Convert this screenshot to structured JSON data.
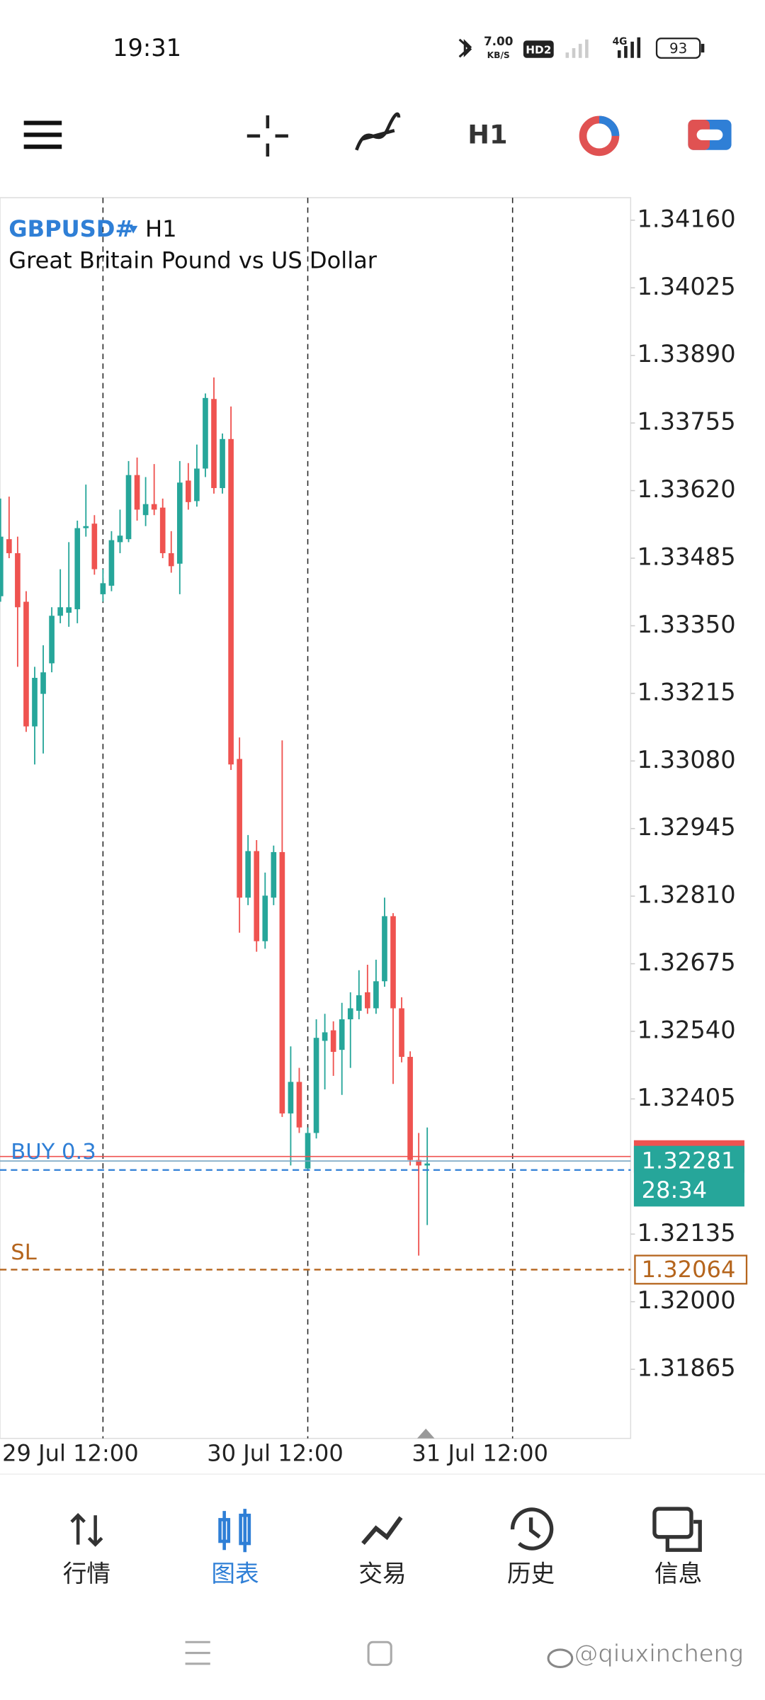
{
  "status_bar": {
    "time": "19:31",
    "net_speed": "7.00",
    "net_unit": "KB/S",
    "hd": "HD2",
    "network": "4G",
    "battery": "93"
  },
  "toolbar": {
    "timeframe": "H1"
  },
  "chart_data": {
    "type": "candlestick",
    "symbol": "GBPUSD#",
    "timeframe": "H1",
    "description": "Great Britain Pound vs US Dollar",
    "up_color": "#26a69a",
    "down_color": "#ef5350",
    "x": [
      "29 Jul 00:00",
      "29 Jul 01:00",
      "29 Jul 02:00",
      "29 Jul 03:00",
      "29 Jul 04:00",
      "29 Jul 05:00",
      "29 Jul 06:00",
      "29 Jul 07:00",
      "29 Jul 08:00",
      "29 Jul 09:00",
      "29 Jul 10:00",
      "29 Jul 11:00",
      "29 Jul 12:00",
      "29 Jul 13:00",
      "29 Jul 14:00",
      "29 Jul 15:00",
      "29 Jul 16:00",
      "29 Jul 17:00",
      "29 Jul 18:00",
      "29 Jul 19:00",
      "29 Jul 20:00",
      "29 Jul 21:00",
      "29 Jul 22:00",
      "29 Jul 23:00",
      "30 Jul 00:00",
      "30 Jul 01:00",
      "30 Jul 02:00",
      "30 Jul 03:00",
      "30 Jul 04:00",
      "30 Jul 05:00",
      "30 Jul 06:00",
      "30 Jul 07:00",
      "30 Jul 08:00",
      "30 Jul 09:00",
      "30 Jul 10:00",
      "30 Jul 11:00",
      "30 Jul 12:00",
      "30 Jul 13:00",
      "30 Jul 14:00",
      "30 Jul 15:00",
      "30 Jul 16:00",
      "30 Jul 17:00",
      "30 Jul 18:00",
      "30 Jul 19:00",
      "30 Jul 20:00",
      "30 Jul 21:00",
      "30 Jul 22:00",
      "30 Jul 23:00",
      "31 Jul 00:00",
      "31 Jul 01:00",
      "31 Jul 02:00"
    ],
    "open": [
      1.33409,
      1.33523,
      1.33495,
      1.33398,
      1.33149,
      1.33214,
      1.33275,
      1.3337,
      1.33376,
      1.33383,
      1.33545,
      1.33554,
      1.33413,
      1.3343,
      1.33517,
      1.33523,
      1.33651,
      1.33571,
      1.33593,
      1.33586,
      1.33495,
      1.33474,
      1.3364,
      1.33599,
      1.33664,
      1.33803,
      1.33625,
      1.33723,
      1.33084,
      1.32807,
      1.329,
      1.3272,
      1.32807,
      1.32898,
      1.32376,
      1.32439,
      1.32266,
      1.32337,
      1.32521,
      1.32542,
      1.32503,
      1.32564,
      1.32581,
      1.32618,
      1.32586,
      1.3264,
      1.3277,
      1.32586,
      1.32489,
      1.32283,
      1.32272
    ],
    "high": [
      1.33604,
      1.33608,
      1.33528,
      1.33419,
      1.33268,
      1.33311,
      1.33387,
      1.33463,
      1.33517,
      1.3356,
      1.33632,
      1.33571,
      1.33463,
      1.33539,
      1.33582,
      1.33679,
      1.33686,
      1.33647,
      1.33673,
      1.33604,
      1.33539,
      1.33679,
      1.33675,
      1.33712,
      1.33814,
      1.33846,
      1.33734,
      1.33788,
      1.33127,
      1.32932,
      1.32922,
      1.32857,
      1.32911,
      1.33121,
      1.3251,
      1.32467,
      1.32348,
      1.32564,
      1.32575,
      1.3256,
      1.32597,
      1.32618,
      1.32662,
      1.32673,
      1.32683,
      1.32807,
      1.32776,
      1.32608,
      1.325,
      1.32337,
      1.32348
    ],
    "low": [
      1.33398,
      1.33485,
      1.33268,
      1.33138,
      1.33073,
      1.33095,
      1.33257,
      1.33355,
      1.33348,
      1.33355,
      1.33528,
      1.33452,
      1.33398,
      1.33419,
      1.33495,
      1.33517,
      1.3356,
      1.33549,
      1.33571,
      1.33485,
      1.33456,
      1.33413,
      1.33582,
      1.33588,
      1.33647,
      1.33614,
      1.33614,
      1.33062,
      1.32737,
      1.32792,
      1.32699,
      1.32705,
      1.32792,
      1.32369,
      1.32272,
      1.32337,
      1.32261,
      1.32326,
      1.32424,
      1.32451,
      1.32413,
      1.32467,
      1.32564,
      1.32575,
      1.32575,
      1.32629,
      1.32435,
      1.32478,
      1.32272,
      1.32092,
      1.32153
    ],
    "close": [
      1.33528,
      1.33495,
      1.33387,
      1.33149,
      1.33246,
      1.33257,
      1.3337,
      1.33387,
      1.33387,
      1.33545,
      1.33549,
      1.33463,
      1.33435,
      1.33521,
      1.3353,
      1.33651,
      1.33582,
      1.33593,
      1.33582,
      1.33495,
      1.33469,
      1.33636,
      1.33597,
      1.33664,
      1.33805,
      1.33625,
      1.33723,
      1.33073,
      1.32807,
      1.329,
      1.3272,
      1.32811,
      1.32898,
      1.32376,
      1.32439,
      1.32348,
      1.32337,
      1.32527,
      1.32538,
      1.32499,
      1.32564,
      1.32586,
      1.32612,
      1.32586,
      1.3264,
      1.3277,
      1.32586,
      1.32489,
      1.32283,
      1.32272,
      1.32276
    ],
    "xlim": [
      "28 Jul 23:56",
      "1 Aug 01:50"
    ],
    "xticks": [
      "29 Jul 12:00",
      "30 Jul 12:00",
      "31 Jul 12:00"
    ],
    "ylim": [
      1.31727,
      1.34205
    ],
    "yticks": [
      {
        "value": 1.3416,
        "label": "1.34160"
      },
      {
        "value": 1.34025,
        "label": "1.34025"
      },
      {
        "value": 1.3389,
        "label": "1.33890"
      },
      {
        "value": 1.33755,
        "label": "1.33755"
      },
      {
        "value": 1.3362,
        "label": "1.33620"
      },
      {
        "value": 1.33485,
        "label": "1.33485"
      },
      {
        "value": 1.3335,
        "label": "1.33350"
      },
      {
        "value": 1.33215,
        "label": "1.33215"
      },
      {
        "value": 1.3308,
        "label": "1.33080"
      },
      {
        "value": 1.32945,
        "label": "1.32945"
      },
      {
        "value": 1.3281,
        "label": "1.32810"
      },
      {
        "value": 1.32675,
        "label": "1.32675"
      },
      {
        "value": 1.3254,
        "label": "1.32540"
      },
      {
        "value": 1.32405,
        "label": "1.32405"
      },
      {
        "value": 1.32135,
        "label": "1.32135"
      },
      {
        "value": 1.32,
        "label": "1.32000"
      },
      {
        "value": 1.31865,
        "label": "1.31865"
      }
    ],
    "grid": "x",
    "bid": {
      "value": 1.32281,
      "timer": "28:34",
      "color": "#26a69a"
    },
    "ask": {
      "value": 1.3229,
      "color": "#ef5350"
    },
    "buy": {
      "label": "BUY 0.3",
      "value": 1.32263,
      "color": "#2f7fd6"
    },
    "sl": {
      "label": "SL",
      "value": 1.32064,
      "color": "#b5651d"
    }
  },
  "nav": {
    "items": [
      "行情",
      "图表",
      "交易",
      "历史",
      "信息"
    ],
    "active": 1
  },
  "watermark": "@qiuxincheng"
}
